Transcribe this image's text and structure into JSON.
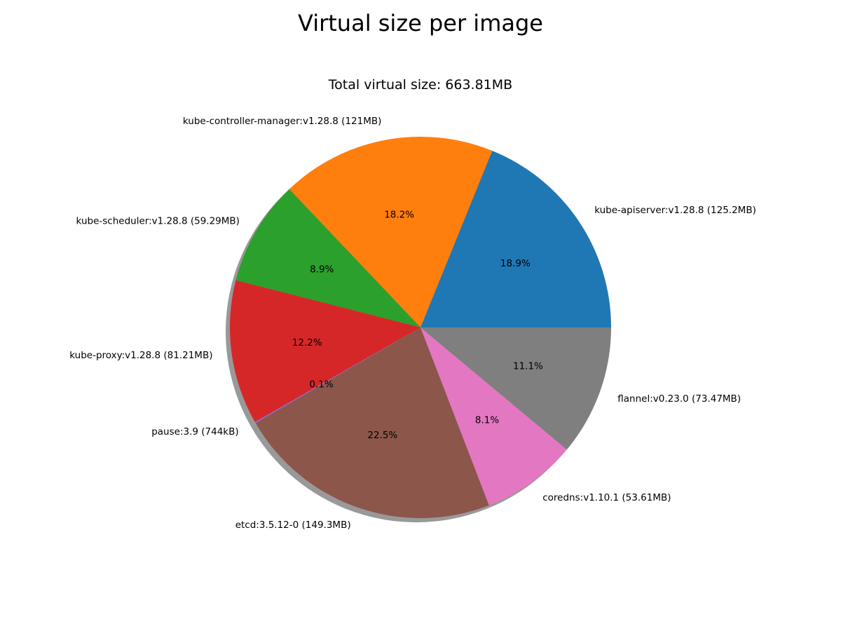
{
  "figure": {
    "suptitle": "Virtual size per image",
    "subtitle": "Total virtual size: 663.81MB"
  },
  "chart_data": {
    "type": "pie",
    "title": "Virtual size per image",
    "subtitle": "Total virtual size: 663.81MB",
    "shadow": true,
    "start_angle_deg": 0,
    "direction": "counterclockwise",
    "slices": [
      {
        "label": "kube-apiserver:v1.28.8 (125.2MB)",
        "value": 125.2,
        "pct": "18.9%",
        "color": "#1f77b4"
      },
      {
        "label": "kube-controller-manager:v1.28.8 (121MB)",
        "value": 121.0,
        "pct": "18.2%",
        "color": "#ff7f0e"
      },
      {
        "label": "kube-scheduler:v1.28.8 (59.29MB)",
        "value": 59.29,
        "pct": "8.9%",
        "color": "#2ca02c"
      },
      {
        "label": "kube-proxy:v1.28.8 (81.21MB)",
        "value": 81.21,
        "pct": "12.2%",
        "color": "#d62728"
      },
      {
        "label": "pause:3.9 (744kB)",
        "value": 0.744,
        "pct": "0.1%",
        "color": "#9467bd"
      },
      {
        "label": "etcd:3.5.12-0 (149.3MB)",
        "value": 149.3,
        "pct": "22.5%",
        "color": "#8c564b"
      },
      {
        "label": "coredns:v1.10.1 (53.61MB)",
        "value": 53.61,
        "pct": "8.1%",
        "color": "#e377c2"
      },
      {
        "label": "flannel:v0.23.0 (73.47MB)",
        "value": 73.47,
        "pct": "11.1%",
        "color": "#7f7f7f"
      }
    ]
  }
}
